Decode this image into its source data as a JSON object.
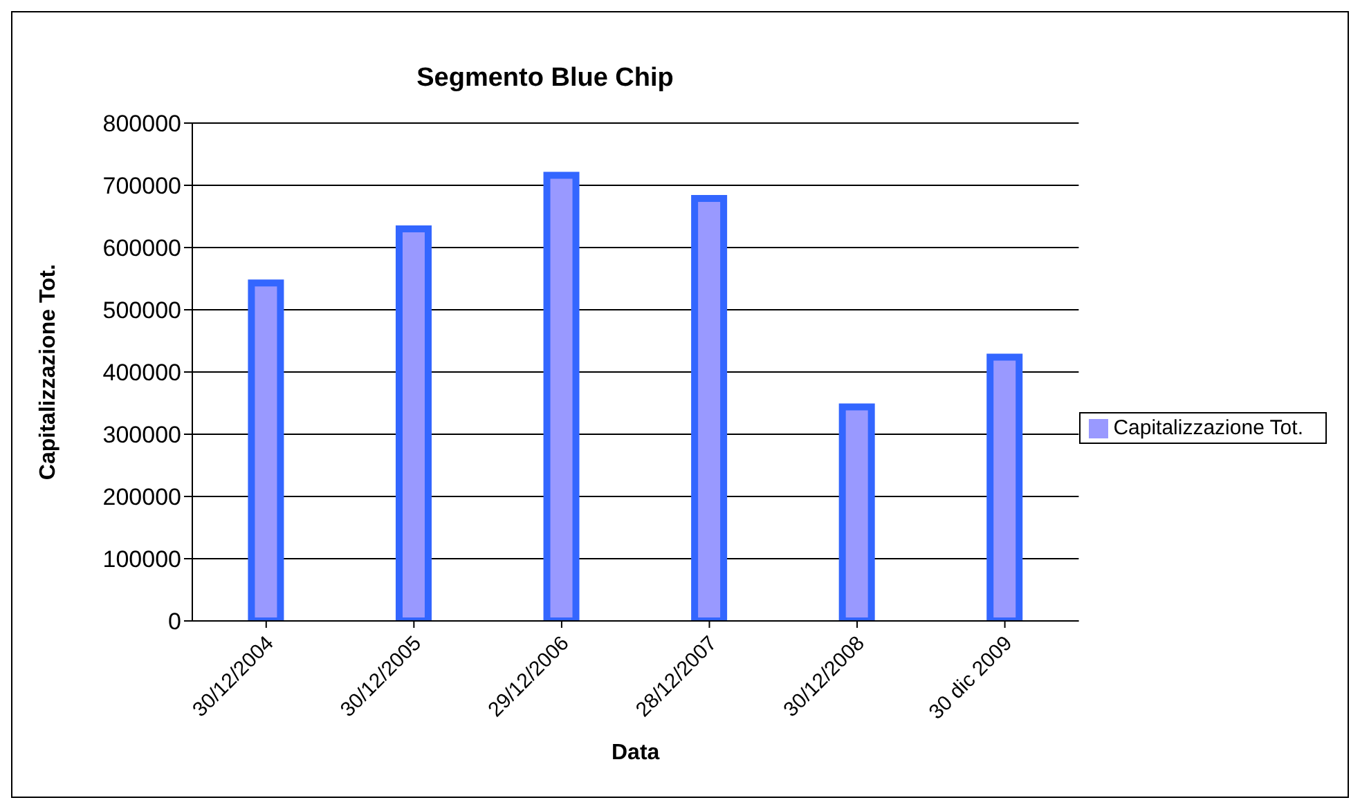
{
  "chart_data": {
    "type": "bar",
    "title": "Segmento Blue Chip",
    "xlabel": "Data",
    "ylabel": "Capitalizzazione Tot.",
    "categories": [
      "30/12/2004",
      "30/12/2005",
      "29/12/2006",
      "28/12/2007",
      "30/12/2008",
      "30 dic 2009"
    ],
    "series": [
      {
        "name": "Capitalizzazione Tot.",
        "color": "#9999ff",
        "values": [
          543000,
          630000,
          716000,
          679000,
          344000,
          424000
        ]
      }
    ],
    "ylim": [
      0,
      800000
    ],
    "yticks": [
      0,
      100000,
      200000,
      300000,
      400000,
      500000,
      600000,
      700000,
      800000
    ],
    "grid": "y",
    "legend": "right"
  }
}
